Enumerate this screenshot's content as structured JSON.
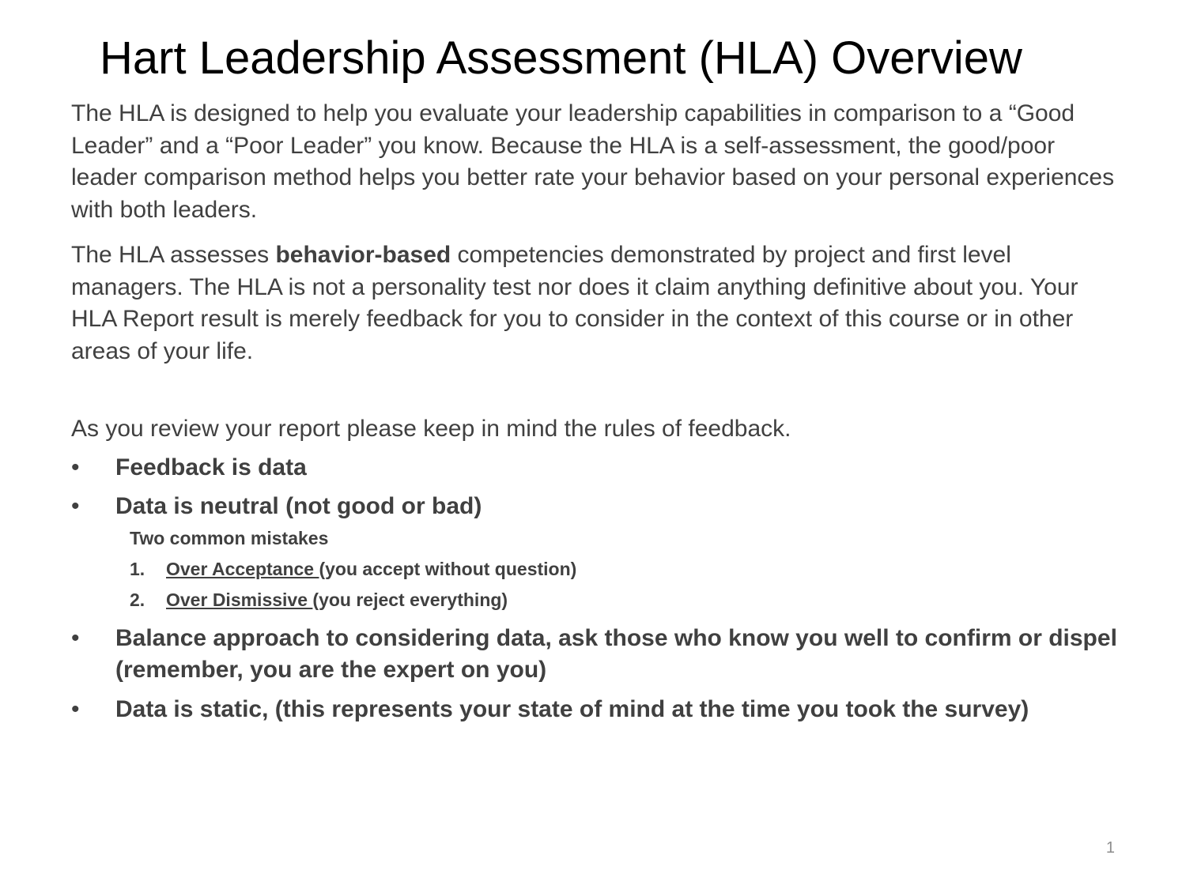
{
  "slide": {
    "title": "Hart Leadership Assessment (HLA) Overview",
    "paragraph1": "The HLA is designed to help you evaluate your leadership capabilities in comparison to a “Good Leader” and a “Poor Leader” you know.  Because the HLA is a self-assessment, the good/poor leader comparison method helps you better rate your behavior based on your personal experiences with both leaders.",
    "paragraph2": {
      "before": "The HLA assesses ",
      "bold": "behavior-based",
      "after": " competencies demonstrated by project and first level managers.   The HLA is not a personality test nor does it claim anything definitive about you.  Your HLA Report result is merely feedback for you to consider in the context of this course or in other areas of your life."
    },
    "intro": "As you review your report please keep in mind the rules of feedback.",
    "bullet_char": "•",
    "bullets": [
      "Feedback is data",
      "Data is neutral (not good or bad)",
      "Balance approach to considering data, ask those who know you well to confirm or dispel (remember, you are the expert on you)",
      "Data is static, (this represents your state of mind at the time you took the survey)"
    ],
    "sub_heading": "Two common mistakes",
    "mistakes": [
      {
        "num": "1.",
        "term": "Over Acceptance ",
        "desc": "(you accept without question)"
      },
      {
        "num": "2.",
        "term": "Over Dismissive ",
        "desc": "(you reject everything)"
      }
    ],
    "page_number": "1"
  }
}
